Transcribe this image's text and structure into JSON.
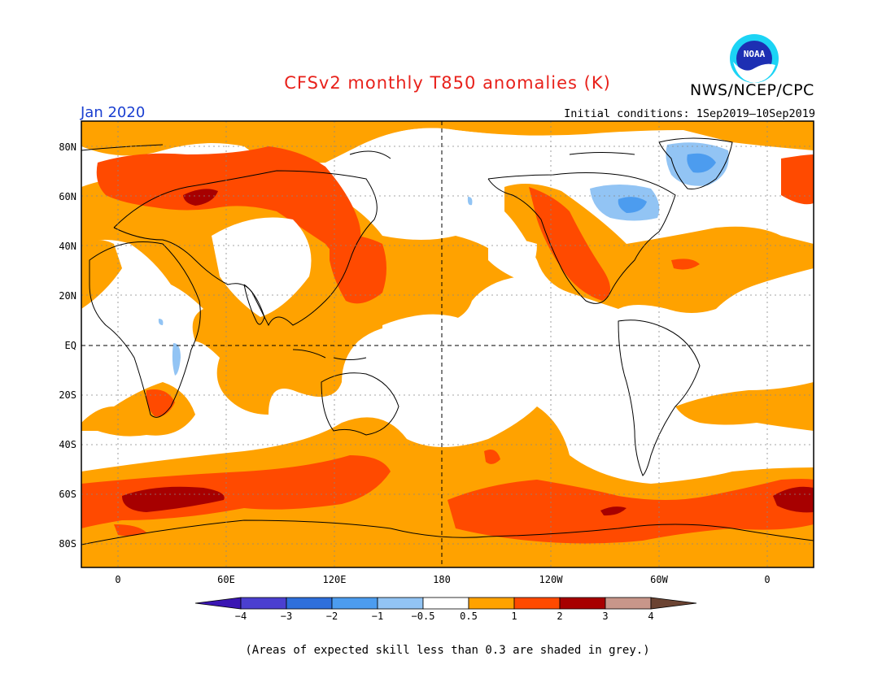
{
  "header": {
    "title": "CFSv2 monthly T850 anomalies (K)",
    "org": "NWS/NCEP/CPC",
    "valid_month": "Jan 2020",
    "initial_conditions": "Initial conditions: 1Sep2019–10Sep2019",
    "logo_text": "NOAA"
  },
  "map": {
    "lat_labels": [
      "80N",
      "60N",
      "40N",
      "20N",
      "EQ",
      "20S",
      "40S",
      "60S",
      "80S"
    ],
    "lon_labels": [
      "0",
      "60E",
      "120E",
      "180",
      "120W",
      "60W",
      "0"
    ]
  },
  "colorbar": {
    "tick_labels": [
      "−4",
      "−3",
      "−2",
      "−1",
      "−0.5",
      "0.5",
      "1",
      "2",
      "3",
      "4"
    ],
    "colors": [
      "#3a16b3",
      "#4b3fd0",
      "#2e6fdb",
      "#4c9cef",
      "#92c4f4",
      "#ffffff",
      "#ffa200",
      "#ff4a00",
      "#a70000",
      "#c8968a",
      "#6b4332"
    ]
  },
  "footnote": "(Areas of expected skill less than 0.3 are shaded in grey.)"
}
